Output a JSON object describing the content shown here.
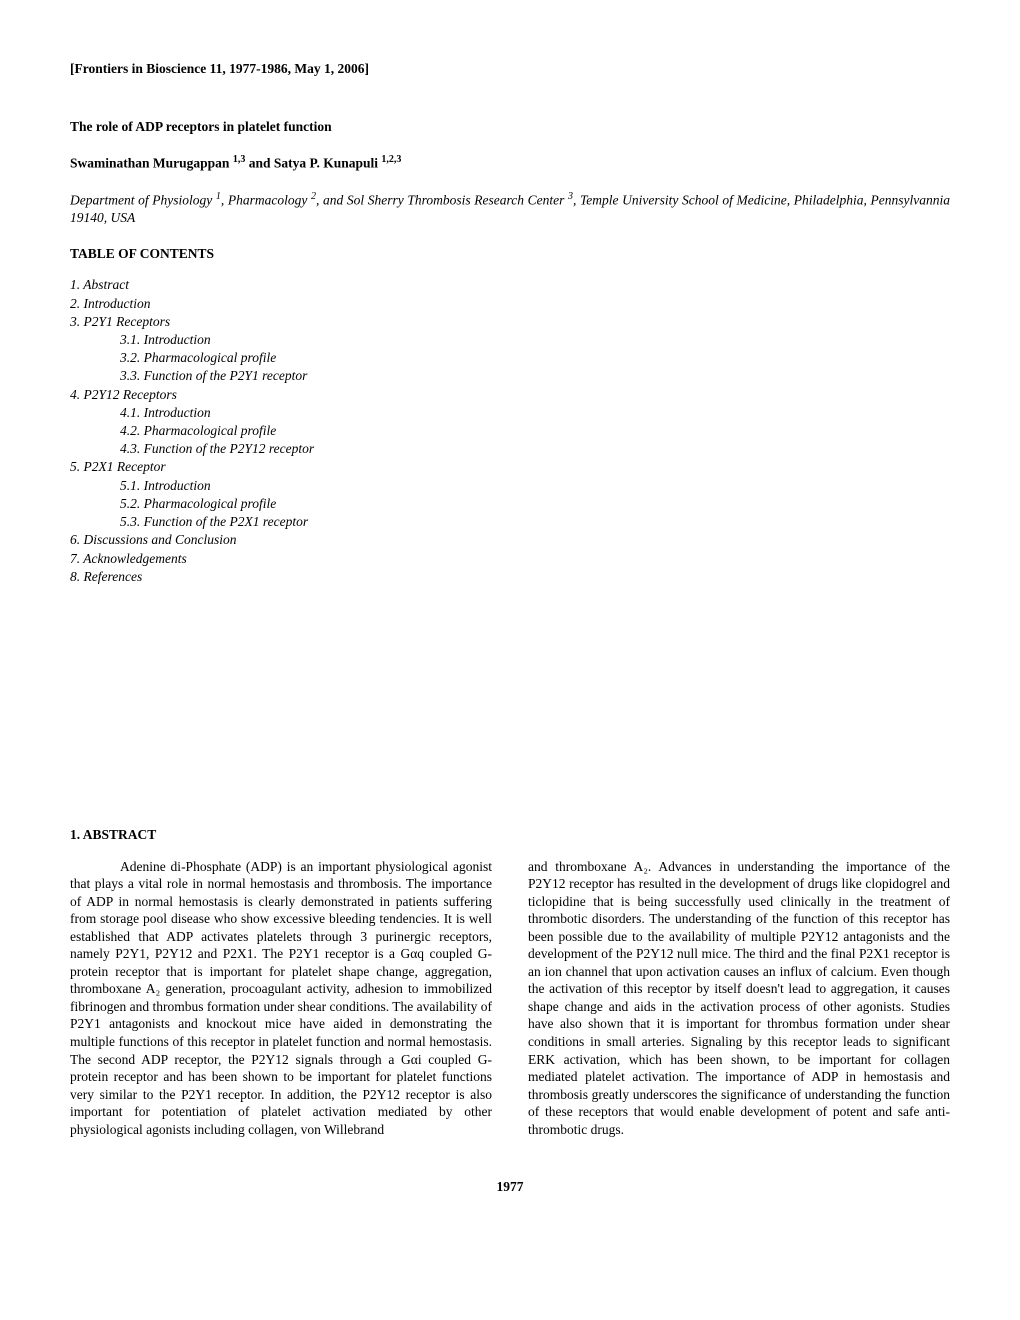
{
  "journal_header": "[Frontiers in Bioscience 11, 1977-1986, May 1, 2006]",
  "title": "The role of ADP receptors in platelet function",
  "authors_html": "Swaminathan Murugappan <sup>1,3</sup> and Satya P. Kunapuli <sup>1,2,3</sup>",
  "affiliation_html": "Department of Physiology <sup>1</sup>, Pharmacology <sup>2</sup>, and Sol Sherry Thrombosis Research Center <sup>3</sup>, Temple University School of Medicine, Philadelphia, Pennsylvannia 19140, USA",
  "toc_header": "TABLE OF CONTENTS",
  "toc": {
    "items": [
      {
        "text": "1. Abstract",
        "indent": 0
      },
      {
        "text": "2. Introduction",
        "indent": 0
      },
      {
        "text": "3. P2Y1 Receptors",
        "indent": 0
      },
      {
        "text": "3.1. Introduction",
        "indent": 1
      },
      {
        "text": "3.2. Pharmacological profile",
        "indent": 1
      },
      {
        "text": "3.3. Function of the P2Y1 receptor",
        "indent": 1
      },
      {
        "text": "4. P2Y12 Receptors",
        "indent": 0
      },
      {
        "text": "4.1. Introduction",
        "indent": 1
      },
      {
        "text": "4.2. Pharmacological profile",
        "indent": 1
      },
      {
        "text": "4.3. Function of the P2Y12 receptor",
        "indent": 1
      },
      {
        "text": "5. P2X1 Receptor",
        "indent": 0
      },
      {
        "text": "5.1. Introduction",
        "indent": 1
      },
      {
        "text": "5.2. Pharmacological profile",
        "indent": 1
      },
      {
        "text": "5.3. Function of the P2X1 receptor",
        "indent": 1
      },
      {
        "text": "6. Discussions and Conclusion",
        "indent": 0
      },
      {
        "text": "7. Acknowledgements",
        "indent": 0
      },
      {
        "text": "8. References",
        "indent": 0
      }
    ]
  },
  "abstract_header": "1. ABSTRACT",
  "abstract_col1": "Adenine di-Phosphate (ADP) is an important physiological agonist that plays a vital role in normal hemostasis and thrombosis. The importance of ADP in normal hemostasis is clearly demonstrated in patients suffering from storage pool disease who show excessive bleeding tendencies. It is well established that ADP activates platelets through 3 purinergic receptors, namely P2Y1, P2Y12 and P2X1. The P2Y1 receptor is a Gαq coupled G-protein receptor that is important for platelet shape change, aggregation, thromboxane A₂ generation, procoagulant activity, adhesion to immobilized fibrinogen and thrombus formation under shear conditions. The availability of P2Y1 antagonists and knockout mice have aided in demonstrating the multiple functions of this receptor in platelet function and normal hemostasis. The second ADP receptor, the P2Y12 signals through a Gαi coupled G-protein receptor and has been shown to be important for platelet functions very similar to the P2Y1 receptor. In addition, the P2Y12 receptor is also important for potentiation of platelet activation mediated by other physiological agonists including collagen, von Willebrand",
  "abstract_col2": "and thromboxane A₂. Advances in understanding the importance of the P2Y12 receptor has resulted in the development of drugs like clopidogrel and ticlopidine that is being successfully used clinically in the treatment of thrombotic disorders. The understanding of the function of this receptor has been possible due to the availability of multiple P2Y12 antagonists and the development of the P2Y12 null mice. The third and the final P2X1 receptor is an ion channel that upon activation causes an influx of calcium. Even though the activation of this receptor by itself doesn't lead to aggregation, it causes shape change and aids in the activation process of other agonists. Studies have also shown that it is important for thrombus formation under shear conditions in small arteries. Signaling by this receptor leads to significant ERK activation, which has been shown, to be important for collagen mediated platelet activation. The importance of ADP in hemostasis and thrombosis greatly underscores the significance of understanding the function of these receptors that would enable development of potent and safe anti-thrombotic drugs.",
  "page_number": "1977",
  "colors": {
    "text": "#000000",
    "background": "#ffffff"
  },
  "typography": {
    "font_family": "Times New Roman",
    "base_fontsize": 13.5,
    "line_height": 1.3
  }
}
